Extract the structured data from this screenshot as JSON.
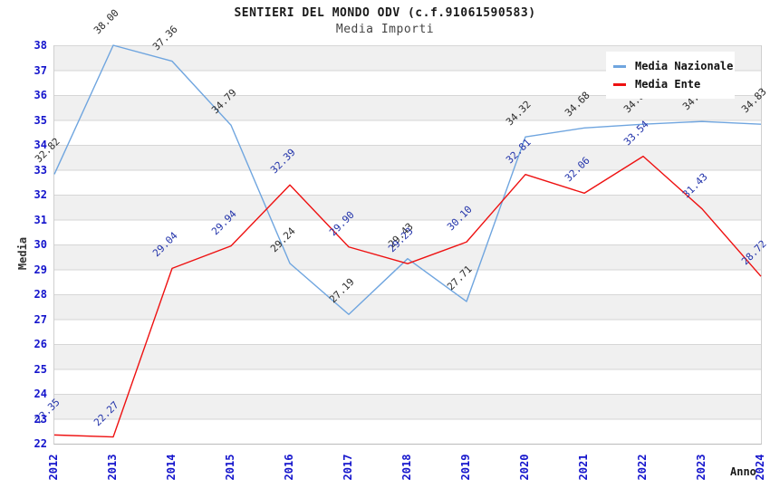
{
  "title": "SENTIERI DEL MONDO ODV (c.f.91061590583)",
  "subtitle": "Media Importi",
  "legend": {
    "items": [
      {
        "label": "Media Nazionale",
        "color": "#6fa5df"
      },
      {
        "label": "Media Ente",
        "color": "#ee1111"
      }
    ]
  },
  "colors": {
    "nazionale_line": "#6fa5df",
    "ente_line": "#ee1111",
    "tick_label": "#1414cc",
    "nazionale_point_label": "#2b2b2b",
    "ente_point_label": "#2233aa",
    "band_gray": "#f0f0f0",
    "gridline": "#d6d6d6"
  },
  "chart_data": {
    "type": "line",
    "title": "SENTIERI DEL MONDO ODV (c.f.91061590583)",
    "subtitle": "Media Importi",
    "xlabel": "Anno",
    "ylabel": "Media",
    "x": [
      2012,
      2013,
      2014,
      2015,
      2016,
      2017,
      2018,
      2019,
      2020,
      2021,
      2022,
      2023,
      2024
    ],
    "series": [
      {
        "name": "Media Nazionale",
        "color": "#6fa5df",
        "label_color": "#2b2b2b",
        "values": [
          32.82,
          38.0,
          37.36,
          34.79,
          29.24,
          27.19,
          29.43,
          27.71,
          34.32,
          34.68,
          34.83,
          34.94,
          34.83
        ]
      },
      {
        "name": "Media Ente",
        "color": "#ee1111",
        "label_color": "#2233aa",
        "values": [
          22.35,
          22.27,
          29.04,
          29.94,
          32.39,
          29.9,
          29.23,
          30.1,
          32.81,
          32.06,
          33.54,
          31.43,
          28.72
        ]
      }
    ],
    "ylim": [
      22,
      38
    ],
    "ytick_step": 1,
    "grid": "alternating-horizontal-bands",
    "legend_position": "top-right",
    "point_label_format": "2-decimals",
    "point_label_rotation_deg": -45,
    "xtick_rotation_deg": -90
  }
}
